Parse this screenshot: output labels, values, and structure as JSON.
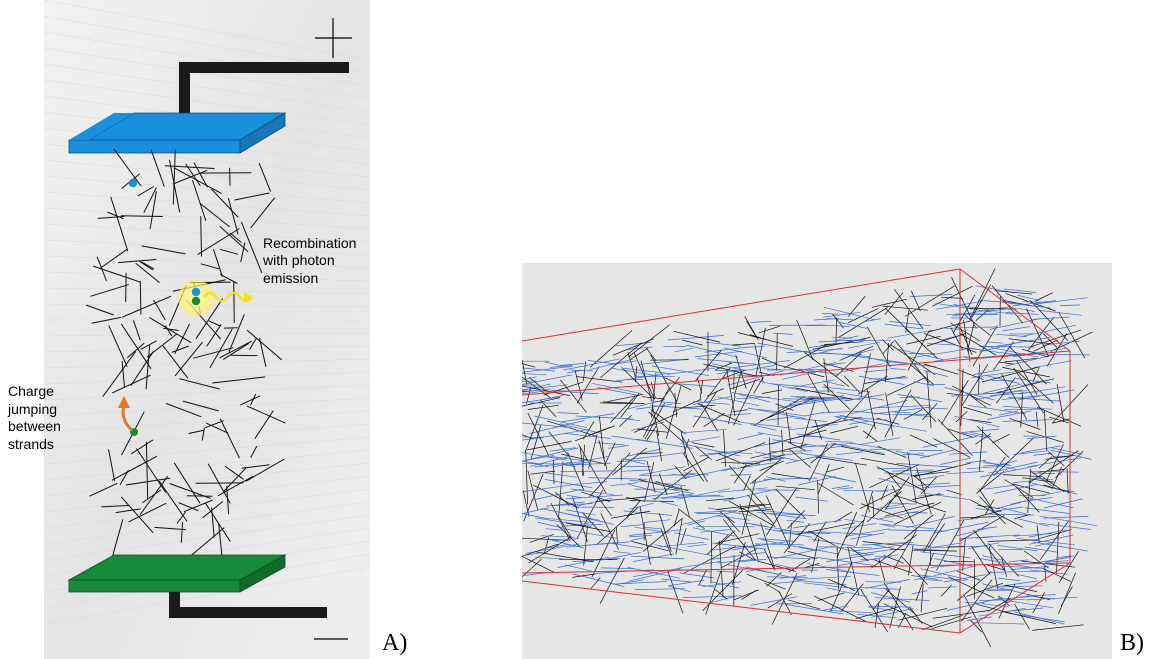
{
  "panels": {
    "a": {
      "label": "A)",
      "positive_terminal": "+",
      "negative_terminal": "—",
      "annotation_recombination": [
        "Recombination",
        "with photon",
        "emission"
      ],
      "annotation_charge": [
        "Charge",
        "jumping",
        "between",
        "strands"
      ],
      "colors": {
        "top_electrode": "#1a8fdc",
        "bottom_electrode": "#178a3a",
        "lead": "#1a1a1a",
        "electron": "#1a8fdc",
        "hole": "#178a3a",
        "jump_arrow": "#e07a2a",
        "photon": "#f5e21a",
        "glow": "#fff3a0"
      }
    },
    "b": {
      "label": "B)",
      "colors": {
        "background": "#e6e6e6",
        "box": "#e03030",
        "blue_strands": "#3a6ed8",
        "black_strands": "#111111"
      }
    }
  }
}
